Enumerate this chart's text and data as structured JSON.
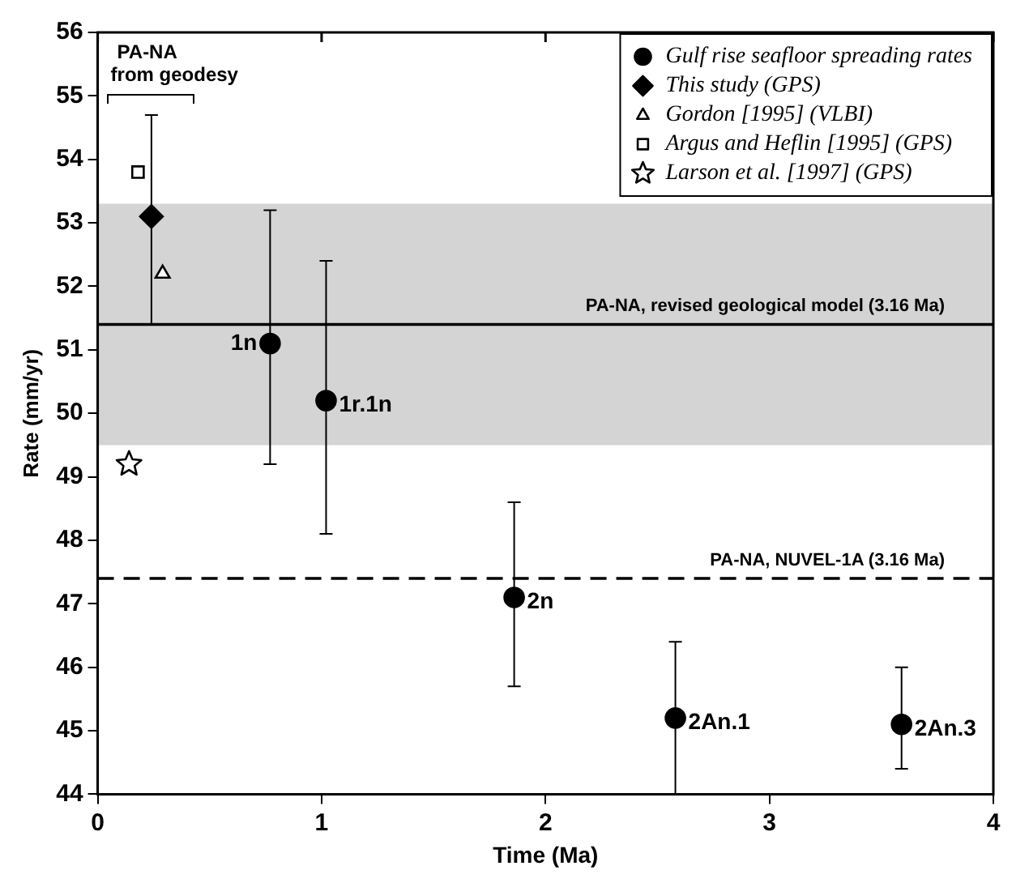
{
  "chart_data": {
    "type": "scatter",
    "xlabel": "Time (Ma)",
    "ylabel": "Rate (mm/yr)",
    "xlim": [
      0,
      4
    ],
    "xticks": [
      0,
      1,
      2,
      3,
      4
    ],
    "ylim": [
      44,
      56
    ],
    "yticks": [
      44,
      45,
      46,
      47,
      48,
      49,
      50,
      51,
      52,
      53,
      54,
      55,
      56
    ],
    "grid": false,
    "legend": "top right",
    "series": [
      {
        "name": "Gulf rise seafloor spreading rates",
        "color": "#000000",
        "marker": "circle",
        "x": [
          0.77,
          1.02,
          1.86,
          2.58,
          3.59
        ],
        "values": [
          51.1,
          50.2,
          47.1,
          45.2,
          45.1
        ],
        "errors": [
          [
            49.2,
            53.2
          ],
          [
            48.1,
            52.4
          ],
          [
            45.7,
            48.6
          ],
          [
            44.0,
            46.4
          ],
          [
            44.4,
            46.0
          ]
        ]
      },
      {
        "name": "This study (GPS)",
        "color": "#000000",
        "marker": "diamond",
        "x": [
          0.24
        ],
        "values": [
          53.1
        ],
        "errors": [
          [
            51.4,
            54.7
          ]
        ]
      },
      {
        "name": "Gordon [1995] (VLBI)",
        "color": "#000000",
        "marker": "triangle",
        "x": [
          0.29
        ],
        "values": [
          52.2
        ]
      },
      {
        "name": "Argus and Heflin [1995] (GPS)",
        "color": "#000000",
        "marker": "square",
        "x": [
          0.18
        ],
        "values": [
          53.8
        ]
      },
      {
        "name": "Larson et al. [1997] (GPS)",
        "color": "#000000",
        "marker": "star",
        "x": [
          0.14
        ],
        "values": [
          49.2
        ]
      }
    ],
    "ref_lines": [
      {
        "axis": "y",
        "value": 51.4,
        "label": "PA-NA, revised geological model (3.16 Ma)",
        "line_style": "solid"
      },
      {
        "axis": "y",
        "value": 47.4,
        "label": "PA-NA, NUVEL-1A (3.16 Ma)",
        "line_style": "dashed"
      }
    ],
    "bands": [
      {
        "axis": "y",
        "from": 49.5,
        "to": 53.3,
        "color": "#d4d4d4"
      }
    ],
    "annotations": [
      "PA-NA\nfrom geodesy",
      {
        "text": "1n",
        "x": 0.77,
        "y": 51.1
      },
      {
        "text": "1r.1n",
        "x": 1.02,
        "y": 50.2
      },
      {
        "text": "2n",
        "x": 1.86,
        "y": 47.1
      },
      {
        "text": "2An.1",
        "x": 2.58,
        "y": 45.2
      },
      {
        "text": "2An.3",
        "x": 3.59,
        "y": 45.1
      }
    ]
  }
}
